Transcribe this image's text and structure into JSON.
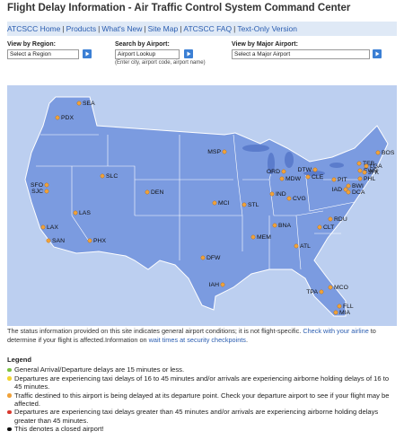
{
  "header": {
    "title": "Flight Delay Information - Air Traffic Control System Command Center"
  },
  "nav": {
    "links": [
      "ATCSCC Home",
      "Products",
      "What's New",
      "Site Map",
      "ATCSCC FAQ",
      "Text-Only Version"
    ],
    "separator": "|"
  },
  "controls": {
    "region": {
      "label": "View by Region:",
      "value": "Select a Region"
    },
    "search": {
      "label": "Search by Airport:",
      "value": "Airport Lookup",
      "hint": "(Enter city, airport code, airport name)"
    },
    "major": {
      "label": "View by Major Airport:",
      "value": "Select a Major Airport"
    }
  },
  "map": {
    "airports": [
      "SEA",
      "PDX",
      "SFO",
      "SJC",
      "LAX",
      "SAN",
      "LAS",
      "PHX",
      "SLC",
      "DEN",
      "MCI",
      "MSP",
      "ORD",
      "MDW",
      "DTW",
      "CLE",
      "IND",
      "STL",
      "CVG",
      "PIT",
      "IAD",
      "BWI",
      "DCA",
      "PHL",
      "EWR",
      "TEB",
      "LGA",
      "JFK",
      "BOS",
      "RDU",
      "CLT",
      "BNA",
      "MEM",
      "ATL",
      "DFW",
      "IAH",
      "TPA",
      "MCO",
      "FLL",
      "MIA"
    ]
  },
  "status": {
    "text1": "The status information provided on this site indicates general airport conditions; it is not flight-specific. ",
    "link1": "Check with your airline",
    "text2": " to determine if your flight is affected.Information on ",
    "link2": "wait times at security checkpoints",
    "text3": "."
  },
  "legend": {
    "title": "Legend",
    "items": [
      "General Arrival/Departure delays are 15 minutes or less.",
      "Departures are experiencing taxi delays of 16 to 45 minutes and/or arrivals are experiencing airborne holding delays of 16 to 45 minutes.",
      "Traffic destined to this airport is being delayed at its departure point. Check your departure airport to see if your flight may be affected.",
      "Departures are experiencing taxi delays greater than 45 minutes and/or arrivals are experiencing airborne holding delays greater than 45 minutes.",
      "This denotes a closed airport!"
    ]
  }
}
